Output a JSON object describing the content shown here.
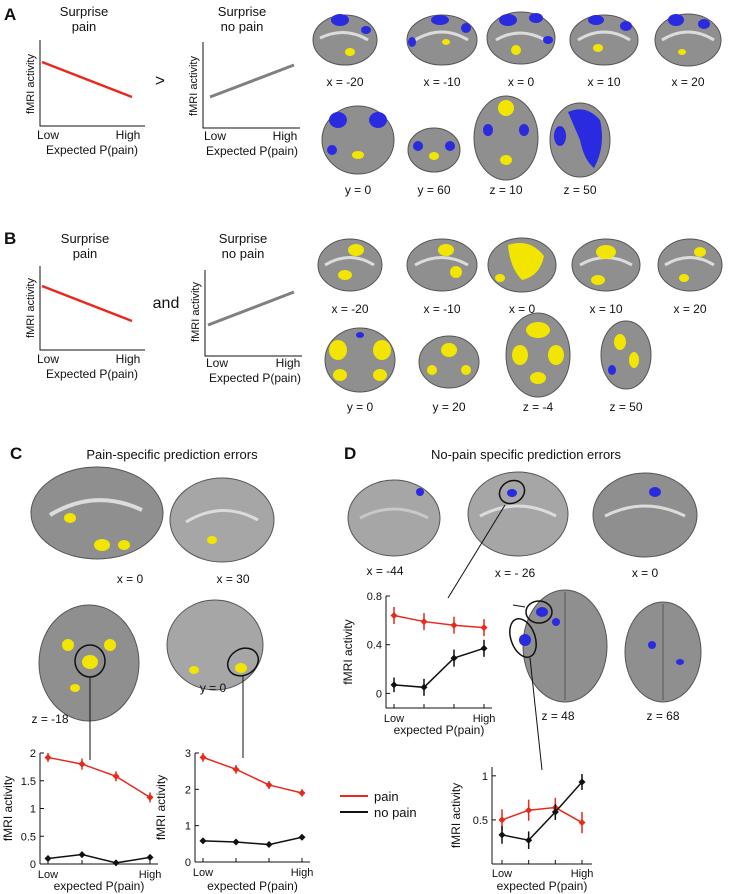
{
  "panels": {
    "A": {
      "letter": "A",
      "schema_left": {
        "title_line1": "Surprise",
        "title_line2": "pain",
        "ylabel": "fMRI activity",
        "x_low": "Low",
        "x_high": "High",
        "xlabel": "Expected P(pain)"
      },
      "operator": ">",
      "schema_right": {
        "title_line1": "Surprise",
        "title_line2": "no pain",
        "ylabel": "fMRI activity",
        "x_low": "Low",
        "x_high": "High",
        "xlabel": "Expected P(pain)"
      },
      "slices": [
        "x = -20",
        "x = -10",
        "x = 0",
        "x = 10",
        "x = 20",
        "y = 0",
        "y = 60",
        "z = 10",
        "z = 50"
      ]
    },
    "B": {
      "letter": "B",
      "schema_left": {
        "title_line1": "Surprise",
        "title_line2": "pain",
        "ylabel": "fMRI activity",
        "x_low": "Low",
        "x_high": "High",
        "xlabel": "Expected P(pain)"
      },
      "operator": "and",
      "schema_right": {
        "title_line1": "Surprise",
        "title_line2": "no pain",
        "ylabel": "fMRI activity",
        "x_low": "Low",
        "x_high": "High",
        "xlabel": "Expected P(pain)"
      },
      "slices": [
        "x = -20",
        "x = -10",
        "x = 0",
        "x = 10",
        "x = 20",
        "y = 0",
        "y = 20",
        "z = -4",
        "z = 50"
      ]
    },
    "C": {
      "letter": "C",
      "title": "Pain-specific prediction errors",
      "slices": [
        "x = 0",
        "x = 30",
        "z = -18",
        "y = 0"
      ]
    },
    "D": {
      "letter": "D",
      "title": "No-pain specific prediction errors",
      "slices": [
        "x = -44",
        "x = - 26",
        "x =  0",
        "z = 48",
        "z = 68"
      ]
    }
  },
  "legend": {
    "pain": "pain",
    "no_pain": "no pain"
  },
  "colors": {
    "pain": "#e8291c",
    "no_pain": "#111111",
    "activation_yellow": "#f2e600",
    "activation_blue": "#2a2ae0",
    "schema_gray": "#808080",
    "brain_gray": "#8f8f8f"
  },
  "chart_data": [
    {
      "type": "line",
      "panel": "C-left",
      "categories": [
        "Low",
        "",
        "",
        "High"
      ],
      "x_tick_labels": [
        "Low",
        "High"
      ],
      "xlabel": "expected P(pain)",
      "ylabel": "fMRI activity",
      "ylim": [
        0,
        2
      ],
      "yticks": [
        0,
        0.5,
        1,
        1.5,
        2
      ],
      "ytick_labels": [
        "0",
        "0.5",
        "1",
        "1.5",
        "2"
      ],
      "series": [
        {
          "name": "pain",
          "values": [
            1.92,
            1.8,
            1.58,
            1.2
          ],
          "err": [
            0.08,
            0.1,
            0.09,
            0.09
          ]
        },
        {
          "name": "no pain",
          "values": [
            0.1,
            0.17,
            0.02,
            0.12
          ],
          "err": [
            0.05,
            0.05,
            0.05,
            0.05
          ]
        }
      ]
    },
    {
      "type": "line",
      "panel": "C-right",
      "categories": [
        "Low",
        "",
        "",
        "High"
      ],
      "x_tick_labels": [
        "Low",
        "High"
      ],
      "xlabel": "expected P(pain)",
      "ylabel": "fMRI activity",
      "ylim": [
        0,
        3
      ],
      "yticks": [
        0,
        1,
        2,
        3
      ],
      "ytick_labels": [
        "0",
        "1",
        "2",
        "3"
      ],
      "series": [
        {
          "name": "pain",
          "values": [
            2.88,
            2.55,
            2.12,
            1.9
          ],
          "err": [
            0.12,
            0.12,
            0.11,
            0.1
          ]
        },
        {
          "name": "no pain",
          "values": [
            0.58,
            0.55,
            0.48,
            0.68
          ],
          "err": [
            0.05,
            0.05,
            0.05,
            0.05
          ]
        }
      ]
    },
    {
      "type": "line",
      "panel": "D-top",
      "categories": [
        "Low",
        "",
        "",
        "High"
      ],
      "x_tick_labels": [
        "Low",
        "High"
      ],
      "xlabel": "expected P(pain)",
      "ylabel": "fMRI activity",
      "ylim": [
        -0.12,
        0.8
      ],
      "yticks": [
        0,
        0.4,
        0.8
      ],
      "ytick_labels": [
        "0",
        "0.4",
        "0.8"
      ],
      "series": [
        {
          "name": "pain",
          "values": [
            0.64,
            0.59,
            0.56,
            0.54
          ],
          "err": [
            0.07,
            0.07,
            0.07,
            0.07
          ]
        },
        {
          "name": "no pain",
          "values": [
            0.07,
            0.05,
            0.29,
            0.37
          ],
          "err": [
            0.06,
            0.07,
            0.07,
            0.07
          ]
        }
      ]
    },
    {
      "type": "line",
      "panel": "D-bottom",
      "categories": [
        "Low",
        "",
        "",
        "High"
      ],
      "x_tick_labels": [
        "Low",
        "High"
      ],
      "xlabel": "expected P(pain)",
      "ylabel": "fMRI activity",
      "ylim": [
        0,
        1.1
      ],
      "yticks": [
        0.5,
        1
      ],
      "ytick_labels": [
        "0.5",
        "1"
      ],
      "series": [
        {
          "name": "pain",
          "values": [
            0.5,
            0.61,
            0.64,
            0.47
          ],
          "err": [
            0.12,
            0.12,
            0.11,
            0.12
          ]
        },
        {
          "name": "no pain",
          "values": [
            0.33,
            0.27,
            0.59,
            0.93
          ],
          "err": [
            0.1,
            0.1,
            0.09,
            0.09
          ]
        }
      ]
    }
  ]
}
